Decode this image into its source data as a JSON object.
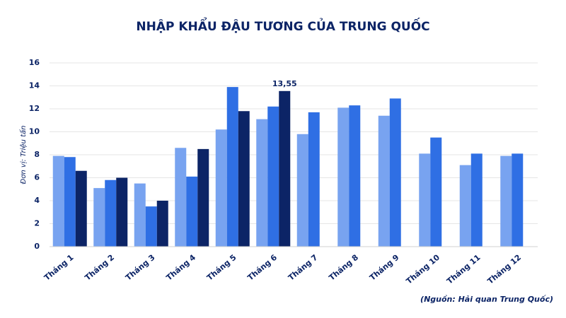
{
  "chart_data": {
    "type": "bar",
    "title": "NHẬP KHẨU ĐẬU TƯƠNG CỦA TRUNG QUỐC",
    "y_label": "Đơn vị: Triệu tấn",
    "source": "(Nguồn: Hải quan Trung Quốc)",
    "categories": [
      "Tháng 1",
      "Tháng 2",
      "Tháng 3",
      "Tháng 4",
      "Tháng 5",
      "Tháng 6",
      "Tháng 7",
      "Tháng 8",
      "Tháng 9",
      "Tháng 10",
      "Tháng 11",
      "Tháng 12"
    ],
    "series": [
      {
        "color": "#78a3f0",
        "values": [
          7.9,
          5.1,
          5.5,
          8.6,
          10.2,
          11.1,
          9.8,
          12.1,
          11.4,
          8.1,
          7.1,
          7.9
        ]
      },
      {
        "color": "#2f6fe4",
        "values": [
          7.8,
          5.8,
          3.5,
          6.1,
          13.9,
          12.2,
          11.7,
          12.3,
          12.9,
          9.5,
          8.1,
          8.1
        ]
      },
      {
        "color": "#0c2466",
        "values": [
          6.6,
          6.0,
          4.0,
          8.5,
          11.8,
          13.55,
          null,
          null,
          null,
          null,
          null,
          null
        ],
        "value_labels": [
          null,
          null,
          null,
          null,
          null,
          "13,55",
          null,
          null,
          null,
          null,
          null,
          null
        ]
      }
    ],
    "ylim": [
      0,
      16
    ],
    "yticks": [
      0,
      2,
      4,
      6,
      8,
      10,
      12,
      14,
      16
    ],
    "grid": true
  }
}
